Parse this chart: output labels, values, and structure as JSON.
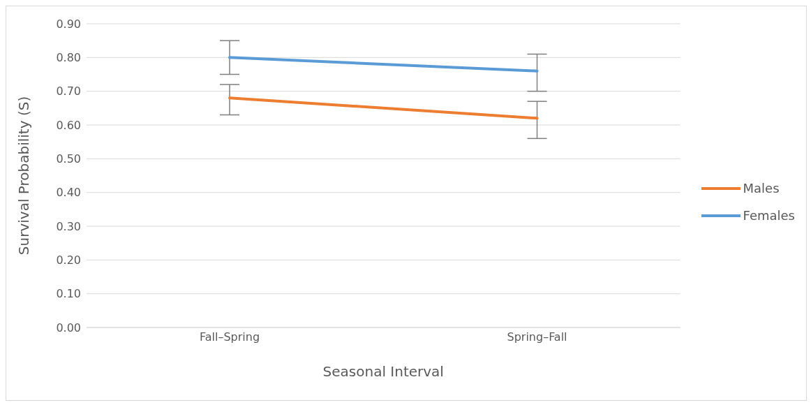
{
  "chart_data": {
    "type": "line",
    "xlabel": "Seasonal Interval",
    "ylabel": "Survival Probability (S)",
    "categories": [
      "Fall–Spring",
      "Spring–Fall"
    ],
    "series": [
      {
        "name": "Males",
        "color": "#ed7d31",
        "values": [
          0.68,
          0.62
        ],
        "errors": [
          [
            0.63,
            0.72
          ],
          [
            0.56,
            0.67
          ]
        ]
      },
      {
        "name": "Females",
        "color": "#5b9bd5",
        "values": [
          0.8,
          0.76
        ],
        "errors": [
          [
            0.75,
            0.85
          ],
          [
            0.7,
            0.81
          ]
        ]
      }
    ],
    "ylim": [
      0,
      0.9
    ],
    "yticks": [
      {
        "value": 0,
        "label": "0.00"
      },
      {
        "value": 0.1,
        "label": "0.10"
      },
      {
        "value": 0.2,
        "label": "0.20"
      },
      {
        "value": 0.3,
        "label": "0.30"
      },
      {
        "value": 0.4,
        "label": "0.40"
      },
      {
        "value": 0.5,
        "label": "0.50"
      },
      {
        "value": 0.6,
        "label": "0.60"
      },
      {
        "value": 0.7,
        "label": "0.70"
      },
      {
        "value": 0.8,
        "label": "0.80"
      },
      {
        "value": 0.9,
        "label": "0.90"
      }
    ],
    "grid": "y",
    "legend": "right",
    "marker": "none",
    "line_style": "solid"
  }
}
